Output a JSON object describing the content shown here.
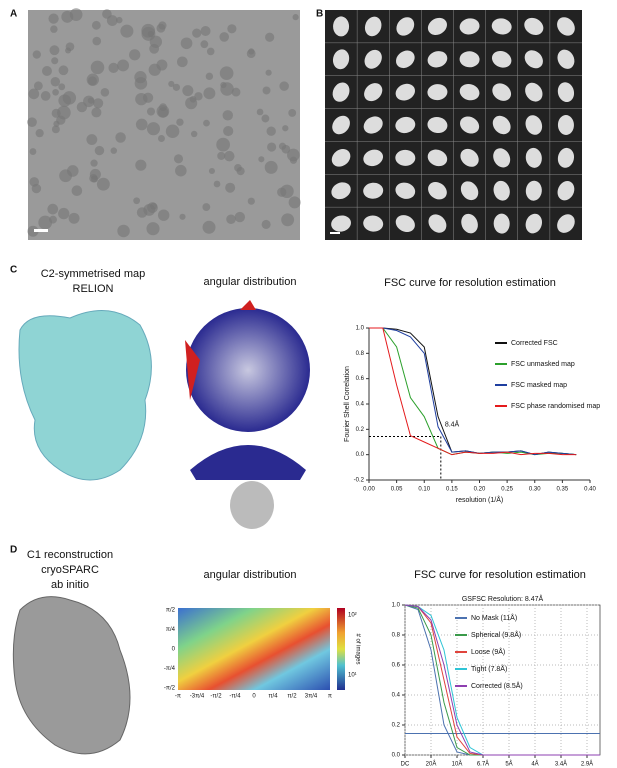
{
  "panels": {
    "a": {
      "label": "A"
    },
    "b": {
      "label": "B"
    },
    "c": {
      "label": "C",
      "map_title": [
        "C2-symmetrised map",
        "RELION"
      ],
      "angular_title": "angular distribution"
    },
    "d": {
      "label": "D",
      "map_title": [
        "C1 reconstruction",
        "cryoSPARC",
        "ab initio"
      ],
      "angular_title": "angular distribution",
      "heatmap": {
        "y_labels": [
          "π/2",
          "π/4",
          "0",
          "-π/4",
          "-π/2"
        ],
        "x_labels": [
          "-π",
          "-3π/4",
          "-π/2",
          "-π/4",
          "0",
          "π/4",
          "π/2",
          "3π/4",
          "π"
        ],
        "colorbar_labels": [
          "10²",
          "10¹"
        ],
        "colorbar_title": "# of images"
      }
    }
  },
  "chart_data": [
    {
      "type": "line",
      "title": "FSC curve for resolution estimation",
      "x_label": "resolution (1/Å)",
      "y_label": "Fourier Shell Correlation",
      "annotation": "8.4Å",
      "threshold": 0.143,
      "resolution_x": 0.13,
      "x": [
        0,
        0.025,
        0.05,
        0.075,
        0.1,
        0.125,
        0.15,
        0.175,
        0.2,
        0.225,
        0.25,
        0.275,
        0.3,
        0.325,
        0.35,
        0.375
      ],
      "series": [
        {
          "name": "Corrected FSC",
          "color": "#111111",
          "values": [
            1,
            1,
            0.99,
            0.96,
            0.85,
            0.3,
            0.02,
            0.03,
            0.01,
            0.02,
            0.02,
            0.03,
            0.0,
            0.02,
            0.01,
            0.0
          ]
        },
        {
          "name": "FSC unmasked map",
          "color": "#2ca02c",
          "values": [
            1,
            1,
            0.85,
            0.45,
            0.3,
            0.05,
            0.0,
            0.02,
            0.01,
            0.02,
            0.01,
            0.02,
            0.0,
            0.01,
            0.01,
            0.0
          ]
        },
        {
          "name": "FSC masked map",
          "color": "#1f3fa0",
          "values": [
            1,
            1,
            0.98,
            0.93,
            0.8,
            0.22,
            0.02,
            0.03,
            0.01,
            0.02,
            0.02,
            0.03,
            0.0,
            0.02,
            0.01,
            0.0
          ]
        },
        {
          "name": "FSC phase randomised map",
          "color": "#e41a1c",
          "values": [
            1,
            1,
            0.55,
            0.15,
            0.1,
            0.05,
            0.0,
            0.02,
            0.01,
            0.01,
            0.02,
            0.0,
            0.01,
            0.01,
            0.0,
            0.0
          ]
        }
      ],
      "xlim": [
        0,
        0.4
      ],
      "xticks": [
        {
          "value": 0,
          "label": "0.00"
        },
        {
          "value": 0.05,
          "label": "0.05"
        },
        {
          "value": 0.1,
          "label": "0.10"
        },
        {
          "value": 0.15,
          "label": "0.15"
        },
        {
          "value": 0.2,
          "label": "0.20"
        },
        {
          "value": 0.25,
          "label": "0.25"
        },
        {
          "value": 0.3,
          "label": "0.30"
        },
        {
          "value": 0.35,
          "label": "0.35"
        },
        {
          "value": 0.4,
          "label": "0.40"
        }
      ],
      "ylim": [
        -0.2,
        1.0
      ],
      "yticks": [
        {
          "value": -0.2,
          "label": "-0.2"
        },
        {
          "value": 0,
          "label": "0.0"
        },
        {
          "value": 0.2,
          "label": "0.2"
        },
        {
          "value": 0.4,
          "label": "0.4"
        },
        {
          "value": 0.6,
          "label": "0.6"
        },
        {
          "value": 0.8,
          "label": "0.8"
        },
        {
          "value": 1,
          "label": "1.0"
        }
      ],
      "grid": false
    },
    {
      "type": "line",
      "title": "FSC curve for resolution estimation",
      "subtitle": "GSFSC Resolution: 8.47Å",
      "threshold": 0.143,
      "x": [
        0,
        0.025,
        0.05,
        0.075,
        0.1,
        0.125,
        0.15,
        0.175,
        0.2,
        0.225,
        0.25,
        0.275,
        0.3,
        0.325,
        0.35,
        0.375
      ],
      "series": [
        {
          "name": "No Mask (11Å)",
          "color": "#4c72b0",
          "values": [
            1,
            0.97,
            0.7,
            0.2,
            0.02,
            0,
            0,
            0,
            0,
            0,
            0,
            0,
            0,
            0,
            0,
            0
          ]
        },
        {
          "name": "Spherical (9.8Å)",
          "color": "#3a9a4a",
          "values": [
            1,
            0.98,
            0.8,
            0.35,
            0.05,
            0,
            0,
            0,
            0,
            0,
            0,
            0,
            0,
            0,
            0,
            0
          ]
        },
        {
          "name": "Loose (9Å)",
          "color": "#e0443c",
          "values": [
            1,
            0.99,
            0.88,
            0.5,
            0.12,
            0.01,
            0,
            0,
            0,
            0,
            0,
            0,
            0,
            0,
            0,
            0
          ]
        },
        {
          "name": "Tight (7.8Å)",
          "color": "#2ec4d6",
          "values": [
            1,
            0.99,
            0.93,
            0.7,
            0.25,
            0.05,
            0,
            0,
            0,
            0,
            0,
            0,
            0,
            0,
            0,
            0
          ]
        },
        {
          "name": "Corrected (8.5Å)",
          "color": "#8e3fb0",
          "values": [
            1,
            0.99,
            0.9,
            0.6,
            0.2,
            0.02,
            0,
            0,
            0,
            0,
            0,
            0,
            0,
            0,
            0,
            0
          ]
        }
      ],
      "xlim": [
        0,
        0.375
      ],
      "xticks": [
        {
          "value": 0,
          "label": "DC"
        },
        {
          "value": 0.05,
          "label": "20Å"
        },
        {
          "value": 0.1,
          "label": "10Å"
        },
        {
          "value": 0.15,
          "label": "6.7Å"
        },
        {
          "value": 0.2,
          "label": "5Å"
        },
        {
          "value": 0.25,
          "label": "4Å"
        },
        {
          "value": 0.3,
          "label": "3.4Å"
        },
        {
          "value": 0.35,
          "label": "2.9Å"
        }
      ],
      "ylim": [
        0,
        1.0
      ],
      "yticks": [
        {
          "value": 0,
          "label": "0.0"
        },
        {
          "value": 0.2,
          "label": "0.2"
        },
        {
          "value": 0.4,
          "label": "0.4"
        },
        {
          "value": 0.6,
          "label": "0.6"
        },
        {
          "value": 0.8,
          "label": "0.8"
        },
        {
          "value": 1,
          "label": "1.0"
        }
      ],
      "grid": true
    }
  ]
}
